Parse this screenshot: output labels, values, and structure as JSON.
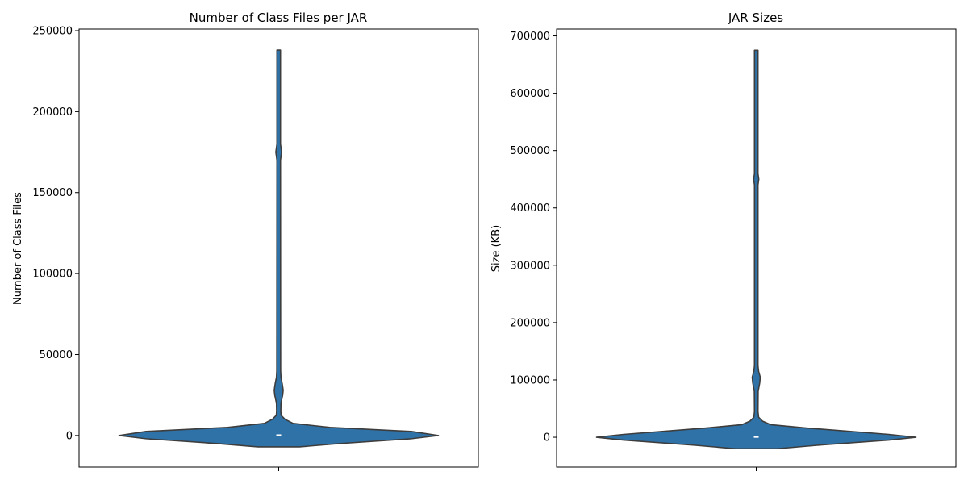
{
  "chart_data": [
    {
      "type": "violin",
      "title": "Number of Class Files per JAR",
      "ylabel": "Number of Class Files",
      "xlabel": "",
      "ylim": [
        -19500,
        251000
      ],
      "yticks": [
        0,
        50000,
        100000,
        150000,
        200000,
        250000
      ],
      "median": 200,
      "whisker_top": 238000,
      "profile": [
        {
          "y": -7000,
          "w": 0.13
        },
        {
          "y": -5000,
          "w": 0.38
        },
        {
          "y": -2000,
          "w": 0.83
        },
        {
          "y": 0,
          "w": 1.0
        },
        {
          "y": 2500,
          "w": 0.83
        },
        {
          "y": 5000,
          "w": 0.32
        },
        {
          "y": 7500,
          "w": 0.09
        },
        {
          "y": 10000,
          "w": 0.04
        },
        {
          "y": 12500,
          "w": 0.015
        },
        {
          "y": 15000,
          "w": 0.013
        },
        {
          "y": 20000,
          "w": 0.014
        },
        {
          "y": 25000,
          "w": 0.025
        },
        {
          "y": 28000,
          "w": 0.028
        },
        {
          "y": 32000,
          "w": 0.022
        },
        {
          "y": 36000,
          "w": 0.014
        },
        {
          "y": 40000,
          "w": 0.012
        },
        {
          "y": 170000,
          "w": 0.011
        },
        {
          "y": 175000,
          "w": 0.018
        },
        {
          "y": 180000,
          "w": 0.011
        },
        {
          "y": 238000,
          "w": 0.011
        }
      ]
    },
    {
      "type": "violin",
      "title": "JAR Sizes",
      "ylabel": "Size (KB)",
      "xlabel": "",
      "ylim": [
        -52000,
        712000
      ],
      "yticks": [
        0,
        100000,
        200000,
        300000,
        400000,
        500000,
        600000,
        700000
      ],
      "median": 500,
      "whisker_top": 675000,
      "profile": [
        {
          "y": -20000,
          "w": 0.13
        },
        {
          "y": -14000,
          "w": 0.38
        },
        {
          "y": -5000,
          "w": 0.83
        },
        {
          "y": 0,
          "w": 1.0
        },
        {
          "y": 5000,
          "w": 0.83
        },
        {
          "y": 16000,
          "w": 0.32
        },
        {
          "y": 22000,
          "w": 0.09
        },
        {
          "y": 28000,
          "w": 0.04
        },
        {
          "y": 35000,
          "w": 0.015
        },
        {
          "y": 45000,
          "w": 0.011
        },
        {
          "y": 80000,
          "w": 0.012
        },
        {
          "y": 95000,
          "w": 0.022
        },
        {
          "y": 105000,
          "w": 0.025
        },
        {
          "y": 115000,
          "w": 0.015
        },
        {
          "y": 125000,
          "w": 0.011
        },
        {
          "y": 440000,
          "w": 0.011
        },
        {
          "y": 450000,
          "w": 0.016
        },
        {
          "y": 460000,
          "w": 0.011
        },
        {
          "y": 675000,
          "w": 0.011
        }
      ]
    }
  ]
}
